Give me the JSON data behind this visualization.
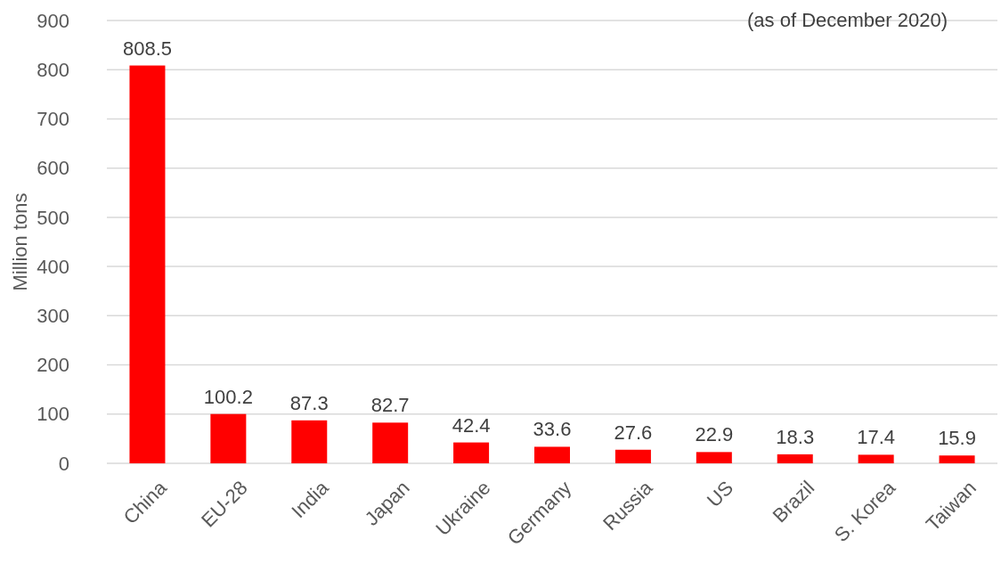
{
  "chart_data": {
    "type": "bar",
    "ylabel": "Million tons",
    "annotations": [
      "(as of December 2020)"
    ],
    "categories": [
      "China",
      "EU-28",
      "India",
      "Japan",
      "Ukraine",
      "Germany",
      "Russia",
      "US",
      "Brazil",
      "S. Korea",
      "Taiwan"
    ],
    "values": [
      808.5,
      100.2,
      87.3,
      82.7,
      42.4,
      33.6,
      27.6,
      22.9,
      18.3,
      17.4,
      15.9
    ],
    "color": "#ff0000",
    "ylim": [
      0,
      900
    ],
    "yticks": [
      0,
      100,
      200,
      300,
      400,
      500,
      600,
      700,
      800,
      900
    ],
    "grid": "y",
    "data_labels": true
  }
}
